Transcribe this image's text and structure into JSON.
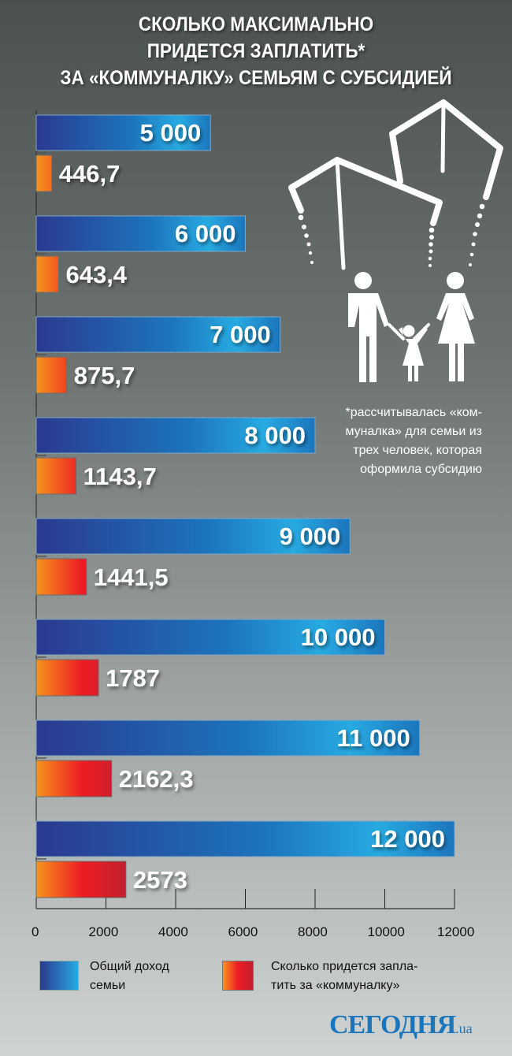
{
  "chart_data": {
    "type": "bar",
    "orientation": "horizontal",
    "title": "СКОЛЬКО МАКСИМАЛЬНО ПРИДЕТСЯ ЗАПЛАТИТЬ* ЗА «КОММУНАЛКУ» СЕМЬЯМ С СУБСИДИЕЙ",
    "title_lines": [
      "СКОЛЬКО МАКСИМАЛЬНО",
      "ПРИДЕТСЯ ЗАПЛАТИТЬ*",
      "ЗА «КОММУНАЛКУ» СЕМЬЯМ С СУБСИДИЕЙ"
    ],
    "xlim": [
      0,
      12000
    ],
    "xticks": [
      0,
      2000,
      4000,
      6000,
      8000,
      10000,
      12000
    ],
    "xtick_labels": [
      "0",
      "2000",
      "4000",
      "6000",
      "8000",
      "10000",
      "12000"
    ],
    "series": [
      {
        "name": "Общий доход семьи",
        "values": [
          5000,
          6000,
          7000,
          8000,
          9000,
          10000,
          11000,
          12000
        ],
        "labels": [
          "5 000",
          "6 000",
          "7 000",
          "8 000",
          "9 000",
          "10 000",
          "11 000",
          "12 000"
        ],
        "color": "#1c75bc"
      },
      {
        "name": "Сколько придется заплатить за «коммуналку»",
        "values": [
          446.7,
          643.4,
          875.7,
          1143.7,
          1441.5,
          1787,
          2162.3,
          2573
        ],
        "labels": [
          "446,7",
          "643,4",
          "875,7",
          "1143,7",
          "1441,5",
          "1787",
          "2162,3",
          "2573"
        ],
        "color": "#ed1c24"
      }
    ],
    "legend": {
      "placement": "bottom",
      "items": [
        {
          "lines": [
            "Общий доход",
            "семьи"
          ]
        },
        {
          "lines": [
            "Сколько придется запла-",
            "тить за «коммуналку»"
          ]
        }
      ]
    },
    "note_lines": [
      "*рассчитывалась «ком-",
      "муналка» для семьи из",
      "трех человек, которая",
      "оформила субсидию"
    ]
  },
  "logo": {
    "main": "СЕГОДНЯ",
    "suffix": ".ua",
    "color": "#1a75bb"
  }
}
